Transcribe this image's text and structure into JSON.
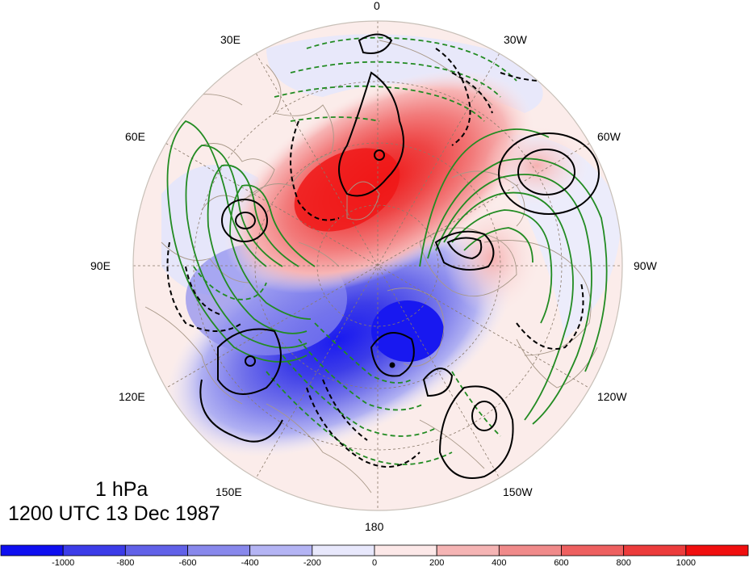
{
  "plot": {
    "level": "1 hPa",
    "valid_time": "1200 UTC 13 Dec 1987",
    "projection": "north-polar-stereographic",
    "shading_palette": "blue-white-red"
  },
  "longitude_labels": [
    "0",
    "30W",
    "60W",
    "90W",
    "120W",
    "150W",
    "180",
    "150E",
    "120E",
    "90E",
    "60E",
    "30E"
  ],
  "colorbar": {
    "tick_labels": [
      "-1000",
      "-800",
      "-600",
      "-400",
      "-200",
      "0",
      "200",
      "400",
      "600",
      "800",
      "1000"
    ],
    "colors": [
      "#0f0ff0",
      "#3c3ce8",
      "#6161e8",
      "#8888ec",
      "#b4b4f4",
      "#e8e8fc",
      "#fce8e8",
      "#f5b4b4",
      "#f08a8a",
      "#ee6060",
      "#ec3c3c",
      "#f00f0f"
    ]
  },
  "colors": {
    "positive_fill": "#f02020",
    "negative_fill": "#2020f0",
    "green_contour": "#228b22",
    "black_contour": "#000000",
    "coastline": "#a89888",
    "grid": "#8a7a6a"
  }
}
